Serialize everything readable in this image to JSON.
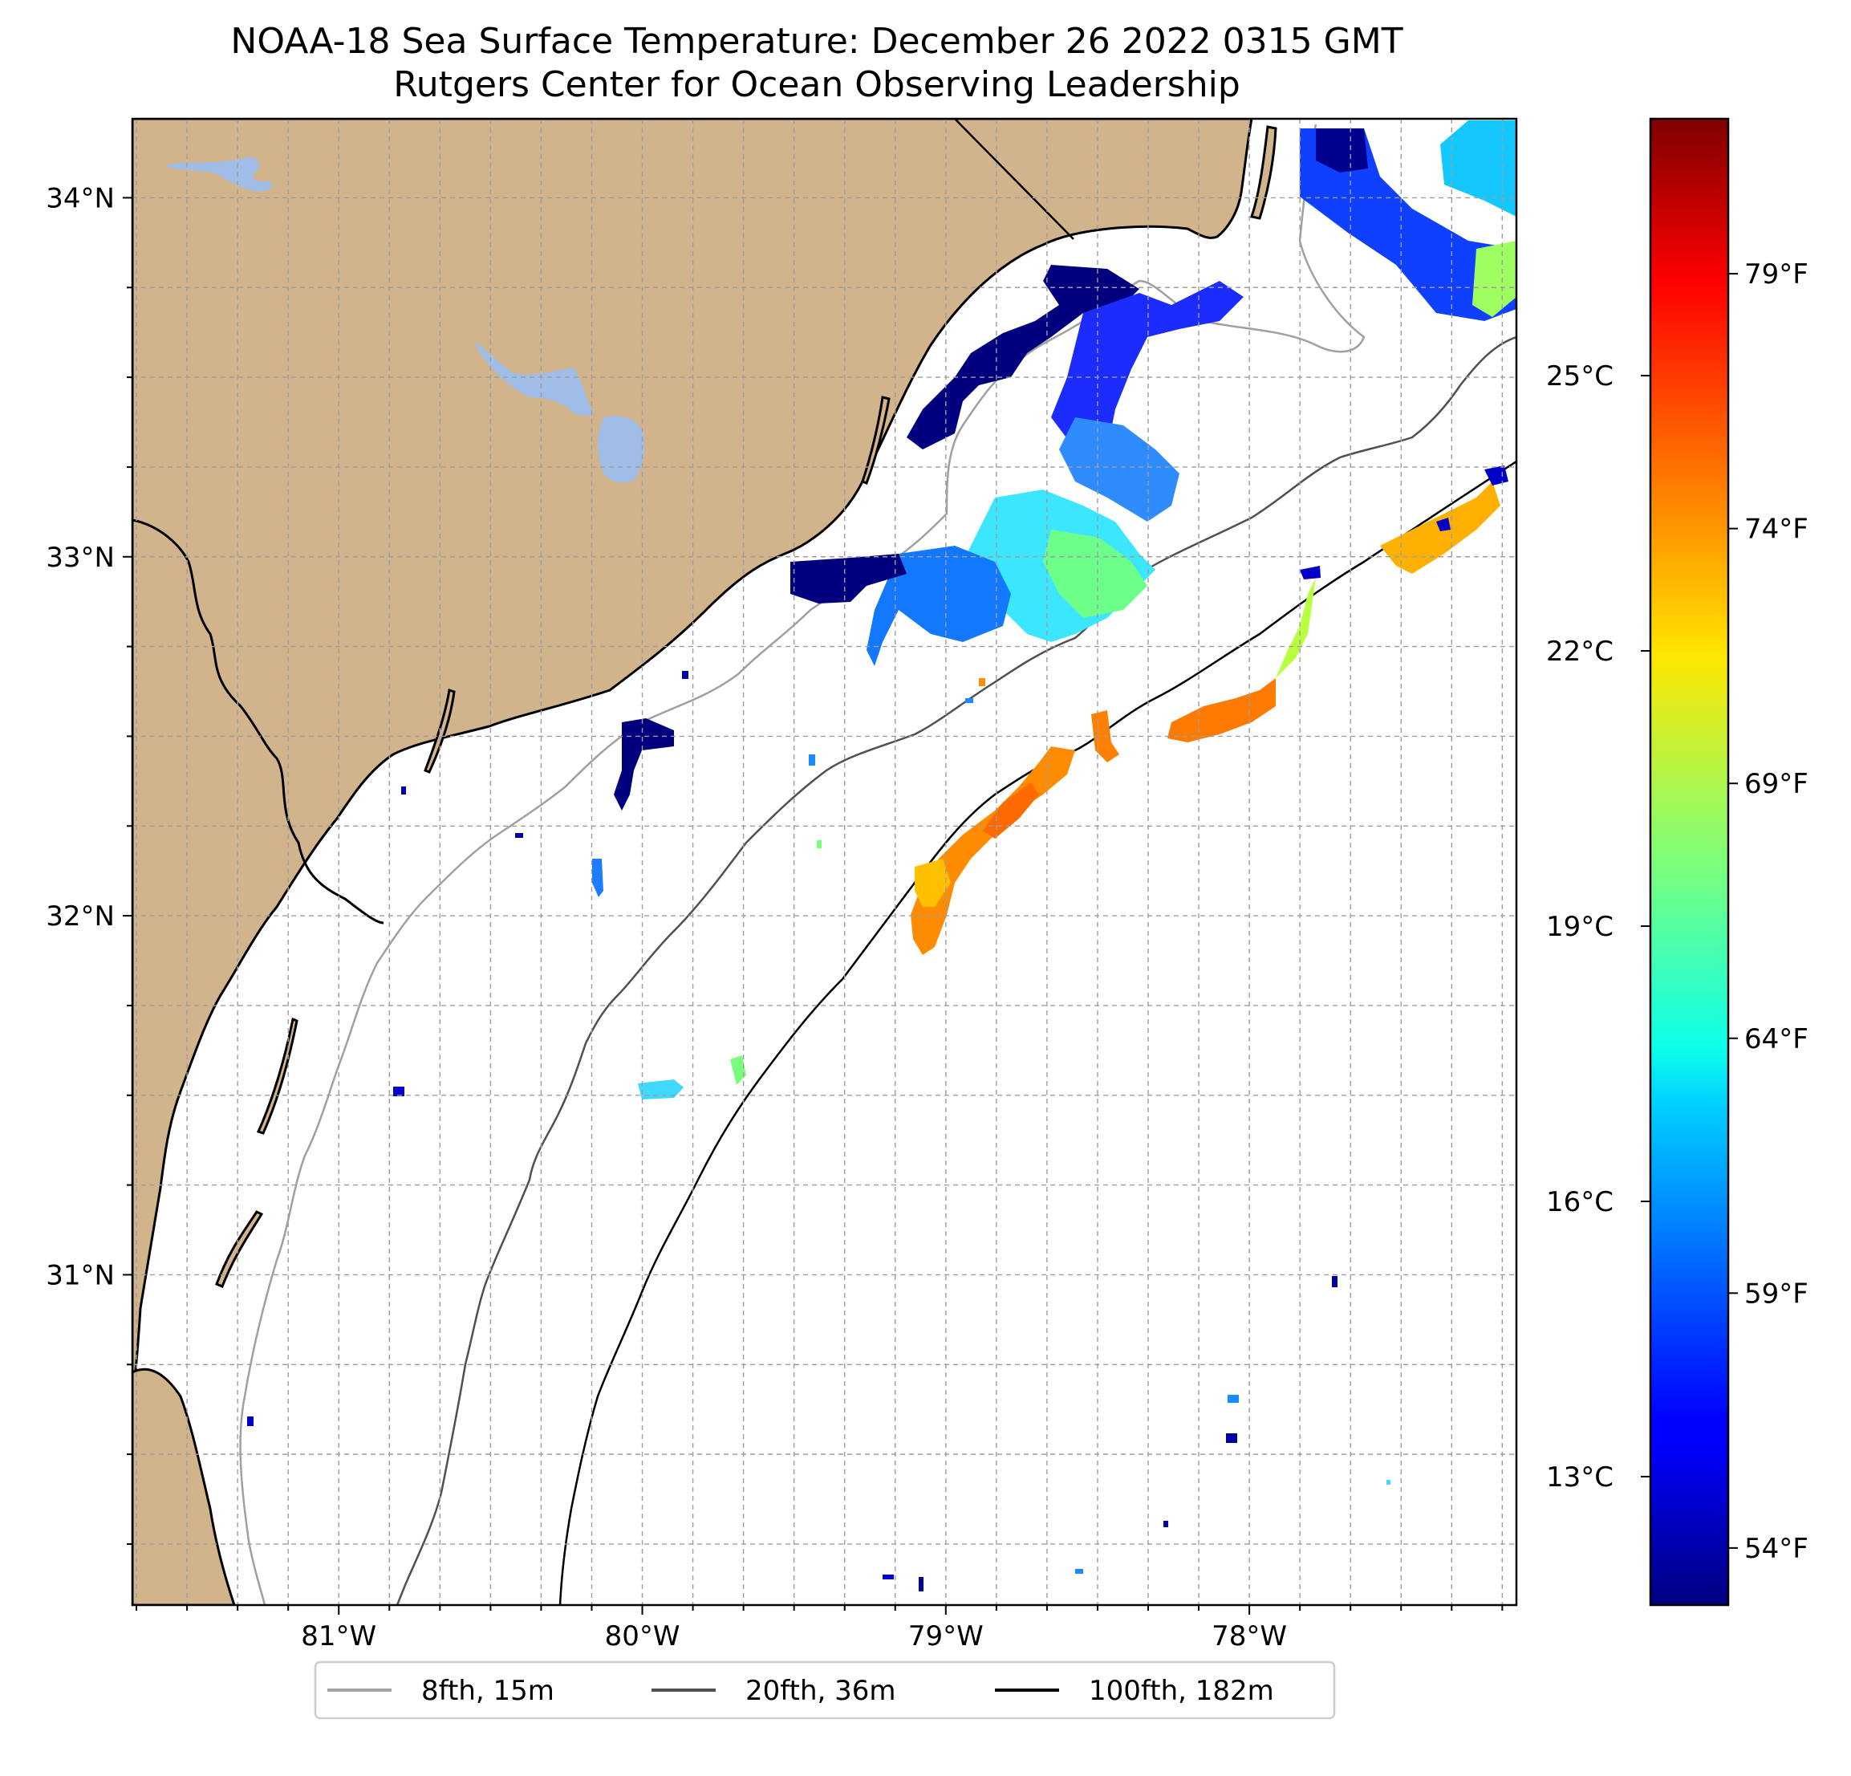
{
  "title": {
    "line1": "NOAA-18 Sea Surface Temperature: December 26 2022 0315 GMT",
    "line2": "Rutgers Center for Ocean Observing Leadership"
  },
  "map": {
    "lon_range": [
      -81.68,
      -77.12
    ],
    "lat_range": [
      30.08,
      34.22
    ],
    "land_color": "#d2b48c",
    "water_color": "#ffffff",
    "lake_color": "#9fbde6",
    "lon_ticks": [
      {
        "value": -81,
        "label": "81°W"
      },
      {
        "value": -80,
        "label": "80°W"
      },
      {
        "value": -79,
        "label": "79°W"
      },
      {
        "value": -78,
        "label": "78°W"
      }
    ],
    "lat_ticks": [
      {
        "value": 34,
        "label": "34°N"
      },
      {
        "value": 33,
        "label": "33°N"
      },
      {
        "value": 32,
        "label": "32°N"
      },
      {
        "value": 31,
        "label": "31°N"
      }
    ]
  },
  "colorbar": {
    "colormap": "jet",
    "range_c": [
      11.6,
      27.8
    ],
    "celsius_ticks": [
      {
        "value": 13,
        "label": "13°C"
      },
      {
        "value": 16,
        "label": "16°C"
      },
      {
        "value": 19,
        "label": "19°C"
      },
      {
        "value": 22,
        "label": "22°C"
      },
      {
        "value": 25,
        "label": "25°C"
      }
    ],
    "fahrenheit_ticks": [
      {
        "value": 54,
        "label": "54°F"
      },
      {
        "value": 59,
        "label": "59°F"
      },
      {
        "value": 64,
        "label": "64°F"
      },
      {
        "value": 69,
        "label": "69°F"
      },
      {
        "value": 74,
        "label": "74°F"
      },
      {
        "value": 79,
        "label": "79°F"
      }
    ]
  },
  "legend": {
    "items": [
      {
        "label": "8fth, 15m",
        "color": "#a0a0a0"
      },
      {
        "label": "20fth, 36m",
        "color": "#505050"
      },
      {
        "label": "100fth, 182m",
        "color": "#000000"
      }
    ]
  }
}
